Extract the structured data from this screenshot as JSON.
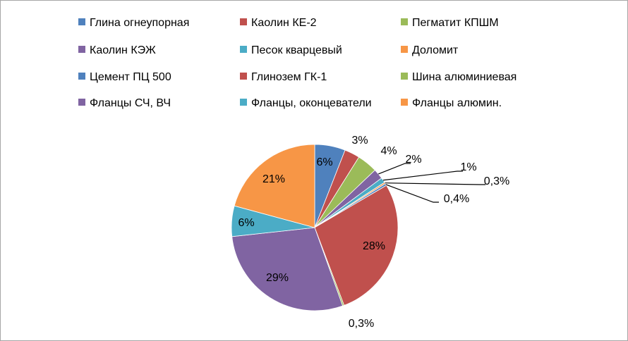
{
  "chart_data": {
    "type": "pie",
    "title": "",
    "legend_placement": "top",
    "series": [
      {
        "name": "",
        "slices": [
          {
            "label": "Глина огнеупорная",
            "value": 6,
            "value_label": "6%",
            "color": "#4F81BD"
          },
          {
            "label": "Каолин КЕ-2",
            "value": 3,
            "value_label": "3%",
            "color": "#C0504D"
          },
          {
            "label": "Пегматит КПШМ",
            "value": 4,
            "value_label": "4%",
            "color": "#9BBB59"
          },
          {
            "label": "Каолин КЭЖ",
            "value": 2,
            "value_label": "2%",
            "color": "#8064A2"
          },
          {
            "label": "Песок кварцевый",
            "value": 1,
            "value_label": "1%",
            "color": "#4BACC6"
          },
          {
            "label": "Доломит",
            "value": 0.3,
            "value_label": "0,3%",
            "color": "#F79646"
          },
          {
            "label": "Цемент ПЦ 500",
            "value": 0.4,
            "value_label": "0,4%",
            "color": "#4F81BD"
          },
          {
            "label": "Глинозем ГК-1",
            "value": 28,
            "value_label": "28%",
            "color": "#C0504D"
          },
          {
            "label": "Шина алюминиевая",
            "value": 0.3,
            "value_label": "0,3%",
            "color": "#9BBB59"
          },
          {
            "label": "Фланцы СЧ, ВЧ",
            "value": 29,
            "value_label": "29%",
            "color": "#8064A2"
          },
          {
            "label": "Фланцы, оконцеватели",
            "value": 6,
            "value_label": "6%",
            "color": "#4BACC6"
          },
          {
            "label": "Фланцы алюмин.",
            "value": 21,
            "value_label": "21%",
            "color": "#F79646"
          }
        ]
      }
    ]
  }
}
